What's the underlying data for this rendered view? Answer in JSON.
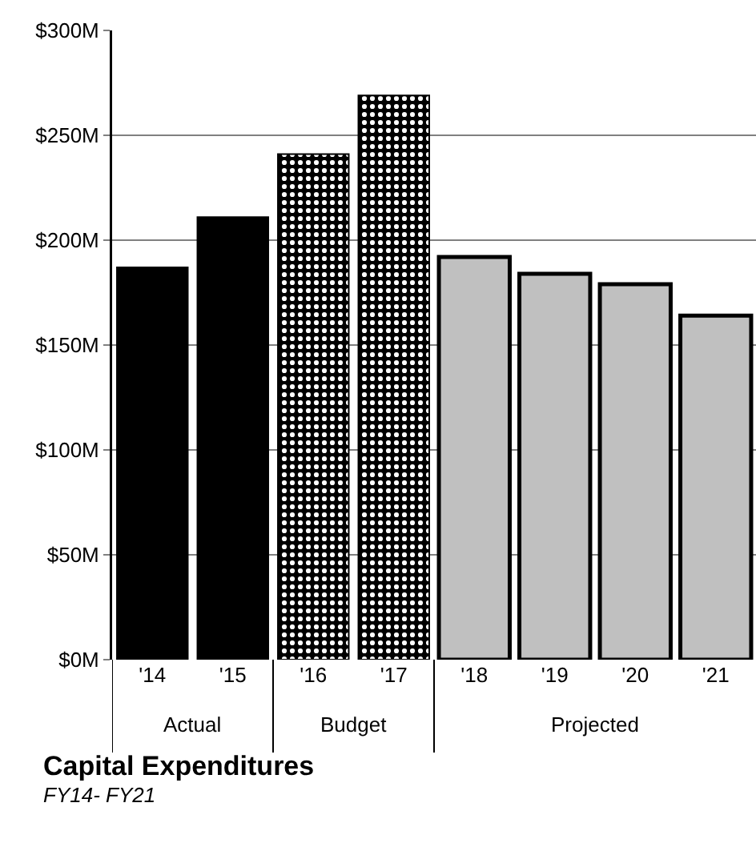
{
  "chart_data": {
    "type": "bar",
    "title": "Capital Expenditures",
    "subtitle": "FY14- FY21",
    "categories": [
      "'14",
      "'15",
      "'16",
      "'17",
      "'18",
      "'19",
      "'20",
      "'21"
    ],
    "series": [
      {
        "name": "Actual",
        "color": "#000000",
        "values": [
          187,
          211,
          null,
          null,
          null,
          null,
          null,
          null
        ]
      },
      {
        "name": "Budget",
        "color": "#000000",
        "values": [
          null,
          null,
          241,
          269,
          null,
          null,
          null,
          null
        ]
      },
      {
        "name": "Projected",
        "color": "#c0c0c0",
        "values": [
          null,
          null,
          null,
          null,
          192,
          184,
          179,
          164
        ]
      }
    ],
    "ylim": [
      0,
      300
    ],
    "yticks": [
      {
        "value": 0,
        "label": "$0M"
      },
      {
        "value": 50,
        "label": "$50M"
      },
      {
        "value": 100,
        "label": "$100M"
      },
      {
        "value": 150,
        "label": "$150M"
      },
      {
        "value": 200,
        "label": "$200M"
      },
      {
        "value": 250,
        "label": "$250M"
      },
      {
        "value": 300,
        "label": "$300M"
      }
    ],
    "grid": "y",
    "legend": false
  }
}
